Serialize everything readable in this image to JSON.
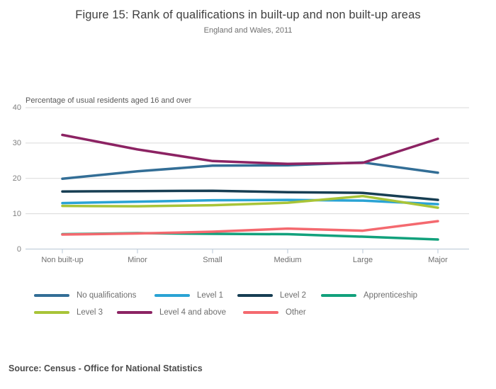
{
  "header": {
    "title": "Figure 15: Rank of qualifications in built-up and non built-up areas",
    "subtitle": "England and Wales, 2011"
  },
  "source_text": "Source: Census - Office for National Statistics",
  "chart_data": {
    "type": "line",
    "title": "Figure 15: Rank of qualifications in built-up and non built-up areas",
    "subtitle": "England and Wales, 2011",
    "axis_title": "Percentage of usual residents aged 16 and over",
    "categories": [
      "Non built-up",
      "Minor",
      "Small",
      "Medium",
      "Large",
      "Major"
    ],
    "y_ticks": [
      40,
      30,
      20,
      10,
      0
    ],
    "ylim": [
      0,
      40
    ],
    "grid": true,
    "legend_position": "bottom",
    "colors": {
      "grid": "#dadada",
      "axis": "#c2cfdc",
      "no_qualifications": "#336e96",
      "level_1": "#2aa3d4",
      "level_2": "#173e53",
      "apprenticeship": "#12a17c",
      "level_3": "#a8c438",
      "level_4_and_above": "#8c2363",
      "other": "#f4696f"
    },
    "series": [
      {
        "name": "No qualifications",
        "color": "#336e96",
        "values": [
          19.9,
          22.0,
          23.6,
          23.7,
          24.5,
          21.6
        ]
      },
      {
        "name": "Level 1",
        "color": "#2aa3d4",
        "values": [
          13.0,
          13.4,
          13.8,
          13.9,
          13.7,
          12.7
        ]
      },
      {
        "name": "Level 2",
        "color": "#173e53",
        "values": [
          16.3,
          16.4,
          16.5,
          16.1,
          15.9,
          13.9
        ]
      },
      {
        "name": "Apprenticeship",
        "color": "#12a17c",
        "values": [
          4.2,
          4.5,
          4.3,
          4.2,
          3.5,
          2.7
        ]
      },
      {
        "name": "Level 3",
        "color": "#a8c438",
        "values": [
          12.2,
          12.1,
          12.4,
          13.1,
          15.0,
          11.7
        ]
      },
      {
        "name": "Level 4 and above",
        "color": "#8c2363",
        "values": [
          32.3,
          28.2,
          24.9,
          24.1,
          24.4,
          31.2
        ]
      },
      {
        "name": "Other",
        "color": "#f4696f",
        "values": [
          4.1,
          4.4,
          4.9,
          5.8,
          5.2,
          7.9
        ]
      }
    ]
  }
}
